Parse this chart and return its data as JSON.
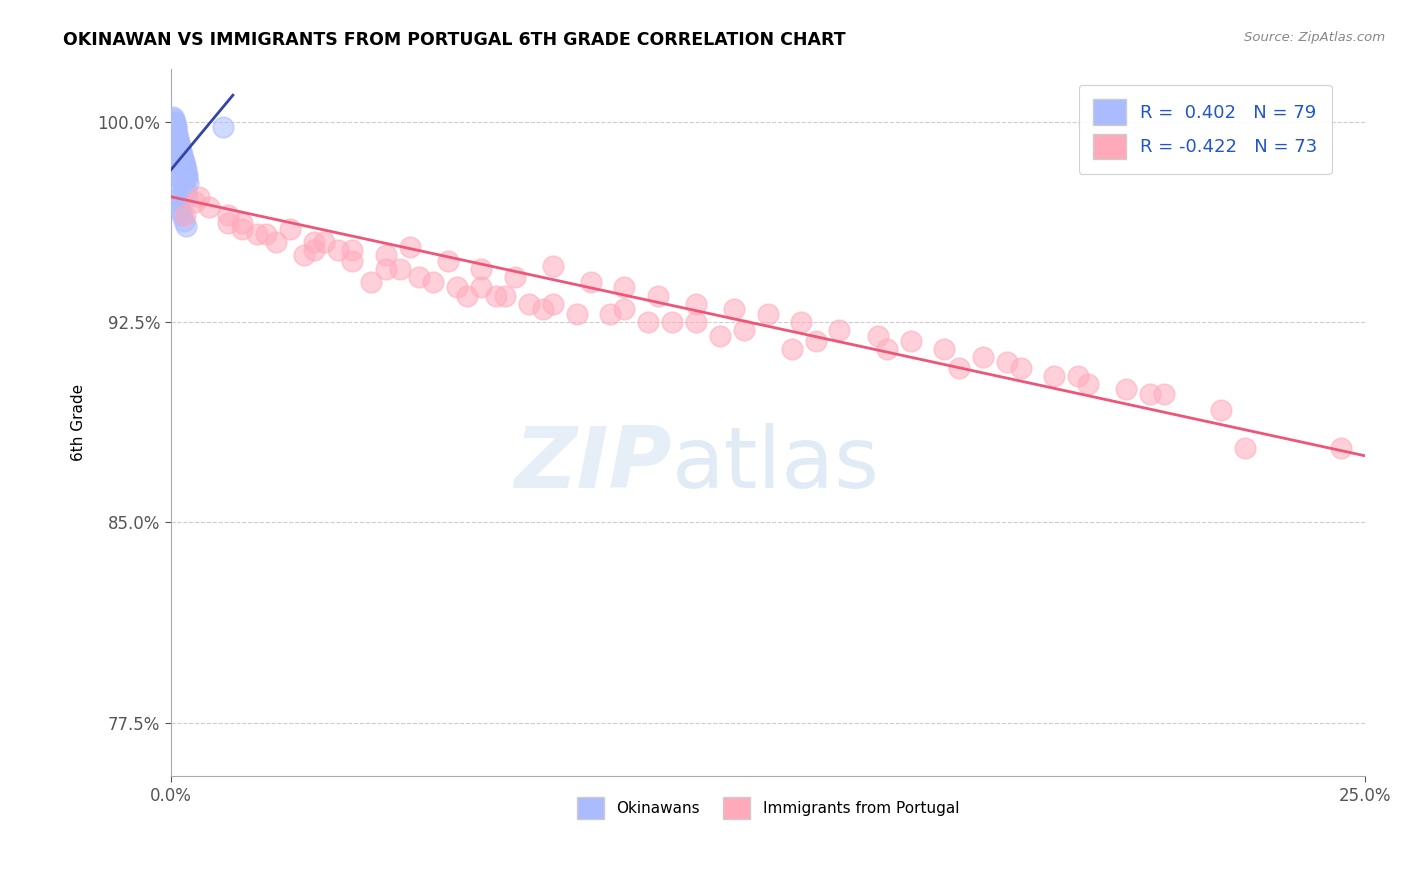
{
  "title": "OKINAWAN VS IMMIGRANTS FROM PORTUGAL 6TH GRADE CORRELATION CHART",
  "source": "Source: ZipAtlas.com",
  "xlim": [
    0.0,
    25.0
  ],
  "ylim": [
    75.5,
    102.0
  ],
  "ylabel": "6th Grade",
  "blue_color": "#aabbff",
  "pink_color": "#ffaabb",
  "blue_line_color": "#3344aa",
  "pink_line_color": "#ee5577",
  "watermark_zip": "ZIP",
  "watermark_atlas": "atlas",
  "blue_scatter_x": [
    0.05,
    0.08,
    0.1,
    0.12,
    0.15,
    0.18,
    0.2,
    0.22,
    0.25,
    0.28,
    0.06,
    0.09,
    0.11,
    0.13,
    0.16,
    0.19,
    0.21,
    0.24,
    0.27,
    0.3,
    0.07,
    0.1,
    0.12,
    0.14,
    0.17,
    0.2,
    0.23,
    0.26,
    0.29,
    0.32,
    0.05,
    0.08,
    0.11,
    0.13,
    0.15,
    0.18,
    0.21,
    0.24,
    0.28,
    0.31,
    0.06,
    0.09,
    0.12,
    0.14,
    0.17,
    0.2,
    0.22,
    0.25,
    0.3,
    0.33,
    0.07,
    0.1,
    0.13,
    0.16,
    0.19,
    0.22,
    0.26,
    0.29,
    0.33,
    0.36,
    0.05,
    0.09,
    0.12,
    0.15,
    0.18,
    0.21,
    0.24,
    0.27,
    0.31,
    0.35,
    1.1,
    0.08,
    0.11,
    0.14,
    0.17,
    0.2,
    0.23,
    0.28,
    0.32
  ],
  "blue_scatter_y": [
    100.2,
    100.0,
    99.8,
    99.6,
    99.4,
    99.2,
    99.0,
    98.8,
    98.6,
    98.4,
    100.1,
    99.9,
    99.7,
    99.5,
    99.3,
    99.1,
    98.9,
    98.7,
    98.5,
    98.3,
    100.0,
    99.8,
    99.6,
    99.4,
    99.2,
    99.0,
    98.8,
    98.6,
    98.4,
    98.2,
    99.9,
    99.7,
    99.5,
    99.3,
    99.1,
    98.9,
    98.7,
    98.5,
    98.3,
    98.1,
    99.8,
    99.6,
    99.4,
    99.2,
    99.0,
    98.8,
    98.6,
    98.4,
    98.2,
    98.0,
    99.5,
    99.3,
    99.1,
    98.9,
    98.7,
    98.5,
    98.3,
    98.1,
    97.9,
    97.7,
    99.0,
    98.8,
    98.6,
    98.4,
    98.2,
    98.0,
    97.8,
    97.6,
    97.4,
    97.2,
    99.8,
    97.5,
    97.3,
    97.1,
    96.9,
    96.7,
    96.5,
    96.3,
    96.1
  ],
  "pink_scatter_x": [
    0.3,
    0.8,
    1.2,
    1.8,
    2.5,
    3.2,
    3.8,
    4.5,
    5.0,
    5.8,
    6.5,
    7.2,
    8.0,
    8.8,
    9.5,
    10.2,
    11.0,
    11.8,
    12.5,
    13.2,
    14.0,
    14.8,
    15.5,
    16.2,
    17.0,
    17.8,
    18.5,
    19.2,
    20.0,
    20.8,
    0.5,
    1.5,
    2.2,
    3.0,
    3.8,
    4.5,
    5.2,
    6.0,
    6.8,
    7.5,
    0.6,
    1.2,
    2.8,
    4.2,
    6.2,
    7.8,
    9.2,
    10.5,
    12.0,
    13.5,
    2.0,
    3.5,
    5.5,
    7.0,
    8.5,
    10.0,
    11.5,
    13.0,
    6.5,
    8.0,
    9.5,
    11.0,
    15.0,
    16.5,
    17.5,
    19.0,
    20.5,
    22.0,
    1.5,
    3.0,
    4.8,
    22.5,
    24.5
  ],
  "pink_scatter_y": [
    96.5,
    96.8,
    96.2,
    95.8,
    96.0,
    95.5,
    95.2,
    95.0,
    95.3,
    94.8,
    94.5,
    94.2,
    94.6,
    94.0,
    93.8,
    93.5,
    93.2,
    93.0,
    92.8,
    92.5,
    92.2,
    92.0,
    91.8,
    91.5,
    91.2,
    90.8,
    90.5,
    90.2,
    90.0,
    89.8,
    97.0,
    96.0,
    95.5,
    95.2,
    94.8,
    94.5,
    94.2,
    93.8,
    93.5,
    93.2,
    97.2,
    96.5,
    95.0,
    94.0,
    93.5,
    93.0,
    92.8,
    92.5,
    92.2,
    91.8,
    95.8,
    95.2,
    94.0,
    93.5,
    92.8,
    92.5,
    92.0,
    91.5,
    93.8,
    93.2,
    93.0,
    92.5,
    91.5,
    90.8,
    91.0,
    90.5,
    89.8,
    89.2,
    96.2,
    95.5,
    94.5,
    87.8,
    87.8
  ],
  "blue_trendline_x": [
    0.0,
    1.3
  ],
  "blue_trendline_y": [
    98.2,
    101.0
  ],
  "pink_trendline_x": [
    0.0,
    25.0
  ],
  "pink_trendline_y": [
    97.2,
    87.5
  ],
  "grid_color": "#cccccc",
  "yticks": [
    77.5,
    85.0,
    92.5,
    100.0
  ],
  "xticks": [
    0.0,
    25.0
  ],
  "ytick_labels": [
    "77.5%",
    "85.0%",
    "92.5%",
    "100.0%"
  ],
  "xtick_labels": [
    "0.0%",
    "25.0%"
  ]
}
